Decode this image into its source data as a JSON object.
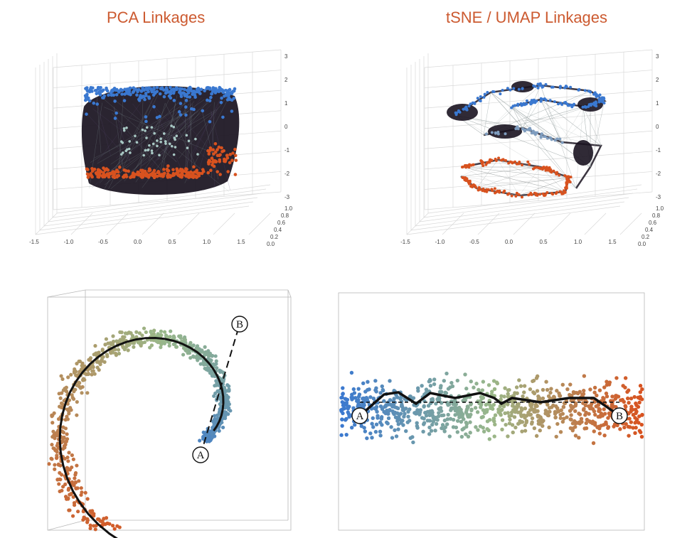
{
  "colors": {
    "title": "#cc5a30",
    "blue": "#3a78d0",
    "green": "#9ab88a",
    "orange": "#d8521f",
    "link_dark": "#1a1320",
    "path": "#111111"
  },
  "panels": {
    "pca": {
      "title": "PCA Linkages"
    },
    "tsne": {
      "title": "tSNE / UMAP Linkages"
    }
  },
  "chart_data": [
    {
      "type": "scatter",
      "title": "PCA Linkages",
      "xlabel": "",
      "ylabel": "",
      "zlabel": "",
      "x_ticks": [
        "-1.5",
        "-1.0",
        "-0.5",
        "0.0",
        "0.5",
        "1.0",
        "1.5"
      ],
      "y_ticks": [
        "0.0",
        "0.2",
        "0.4",
        "0.6",
        "0.8",
        "1.0"
      ],
      "z_ticks": [
        "3",
        "2",
        "1",
        "0",
        "-1",
        "-2",
        "-3"
      ],
      "xlim": [
        -1.5,
        1.5
      ],
      "ylim": [
        0,
        1
      ],
      "zlim": [
        -3,
        3
      ],
      "grid": true,
      "series": [
        {
          "color": "blue",
          "region": "top cluster (z ≈ 1 to 2)"
        },
        {
          "color": "green",
          "region": "center (z ≈ 0 to -1)"
        },
        {
          "color": "orange",
          "region": "bottom cluster (z ≈ -1 to -3)"
        }
      ]
    },
    {
      "type": "scatter",
      "title": "tSNE / UMAP Linkages",
      "xlabel": "",
      "ylabel": "",
      "zlabel": "",
      "x_ticks": [
        "-1.5",
        "-1.0",
        "-0.5",
        "0.0",
        "0.5",
        "1.0",
        "1.5"
      ],
      "y_ticks": [
        "0.0",
        "0.2",
        "0.4",
        "0.6",
        "0.8",
        "1.0"
      ],
      "z_ticks": [
        "3",
        "2",
        "1",
        "0",
        "-1",
        "-2",
        "-3"
      ],
      "xlim": [
        -1.5,
        1.5
      ],
      "ylim": [
        0,
        1
      ],
      "zlim": [
        -3,
        3
      ],
      "grid": true,
      "series": [
        {
          "color": "blue",
          "region": "upper arc"
        },
        {
          "color": "green",
          "region": "middle"
        },
        {
          "color": "orange",
          "region": "lower loop"
        }
      ]
    },
    {
      "type": "scatter",
      "title": "",
      "description_labels": {
        "start": "A",
        "end": "B"
      },
      "colormap": [
        "blue",
        "green",
        "orange"
      ]
    },
    {
      "type": "scatter",
      "title": "",
      "description_labels": {
        "start": "A",
        "end": "B"
      },
      "colormap": [
        "blue",
        "green",
        "orange"
      ]
    }
  ]
}
